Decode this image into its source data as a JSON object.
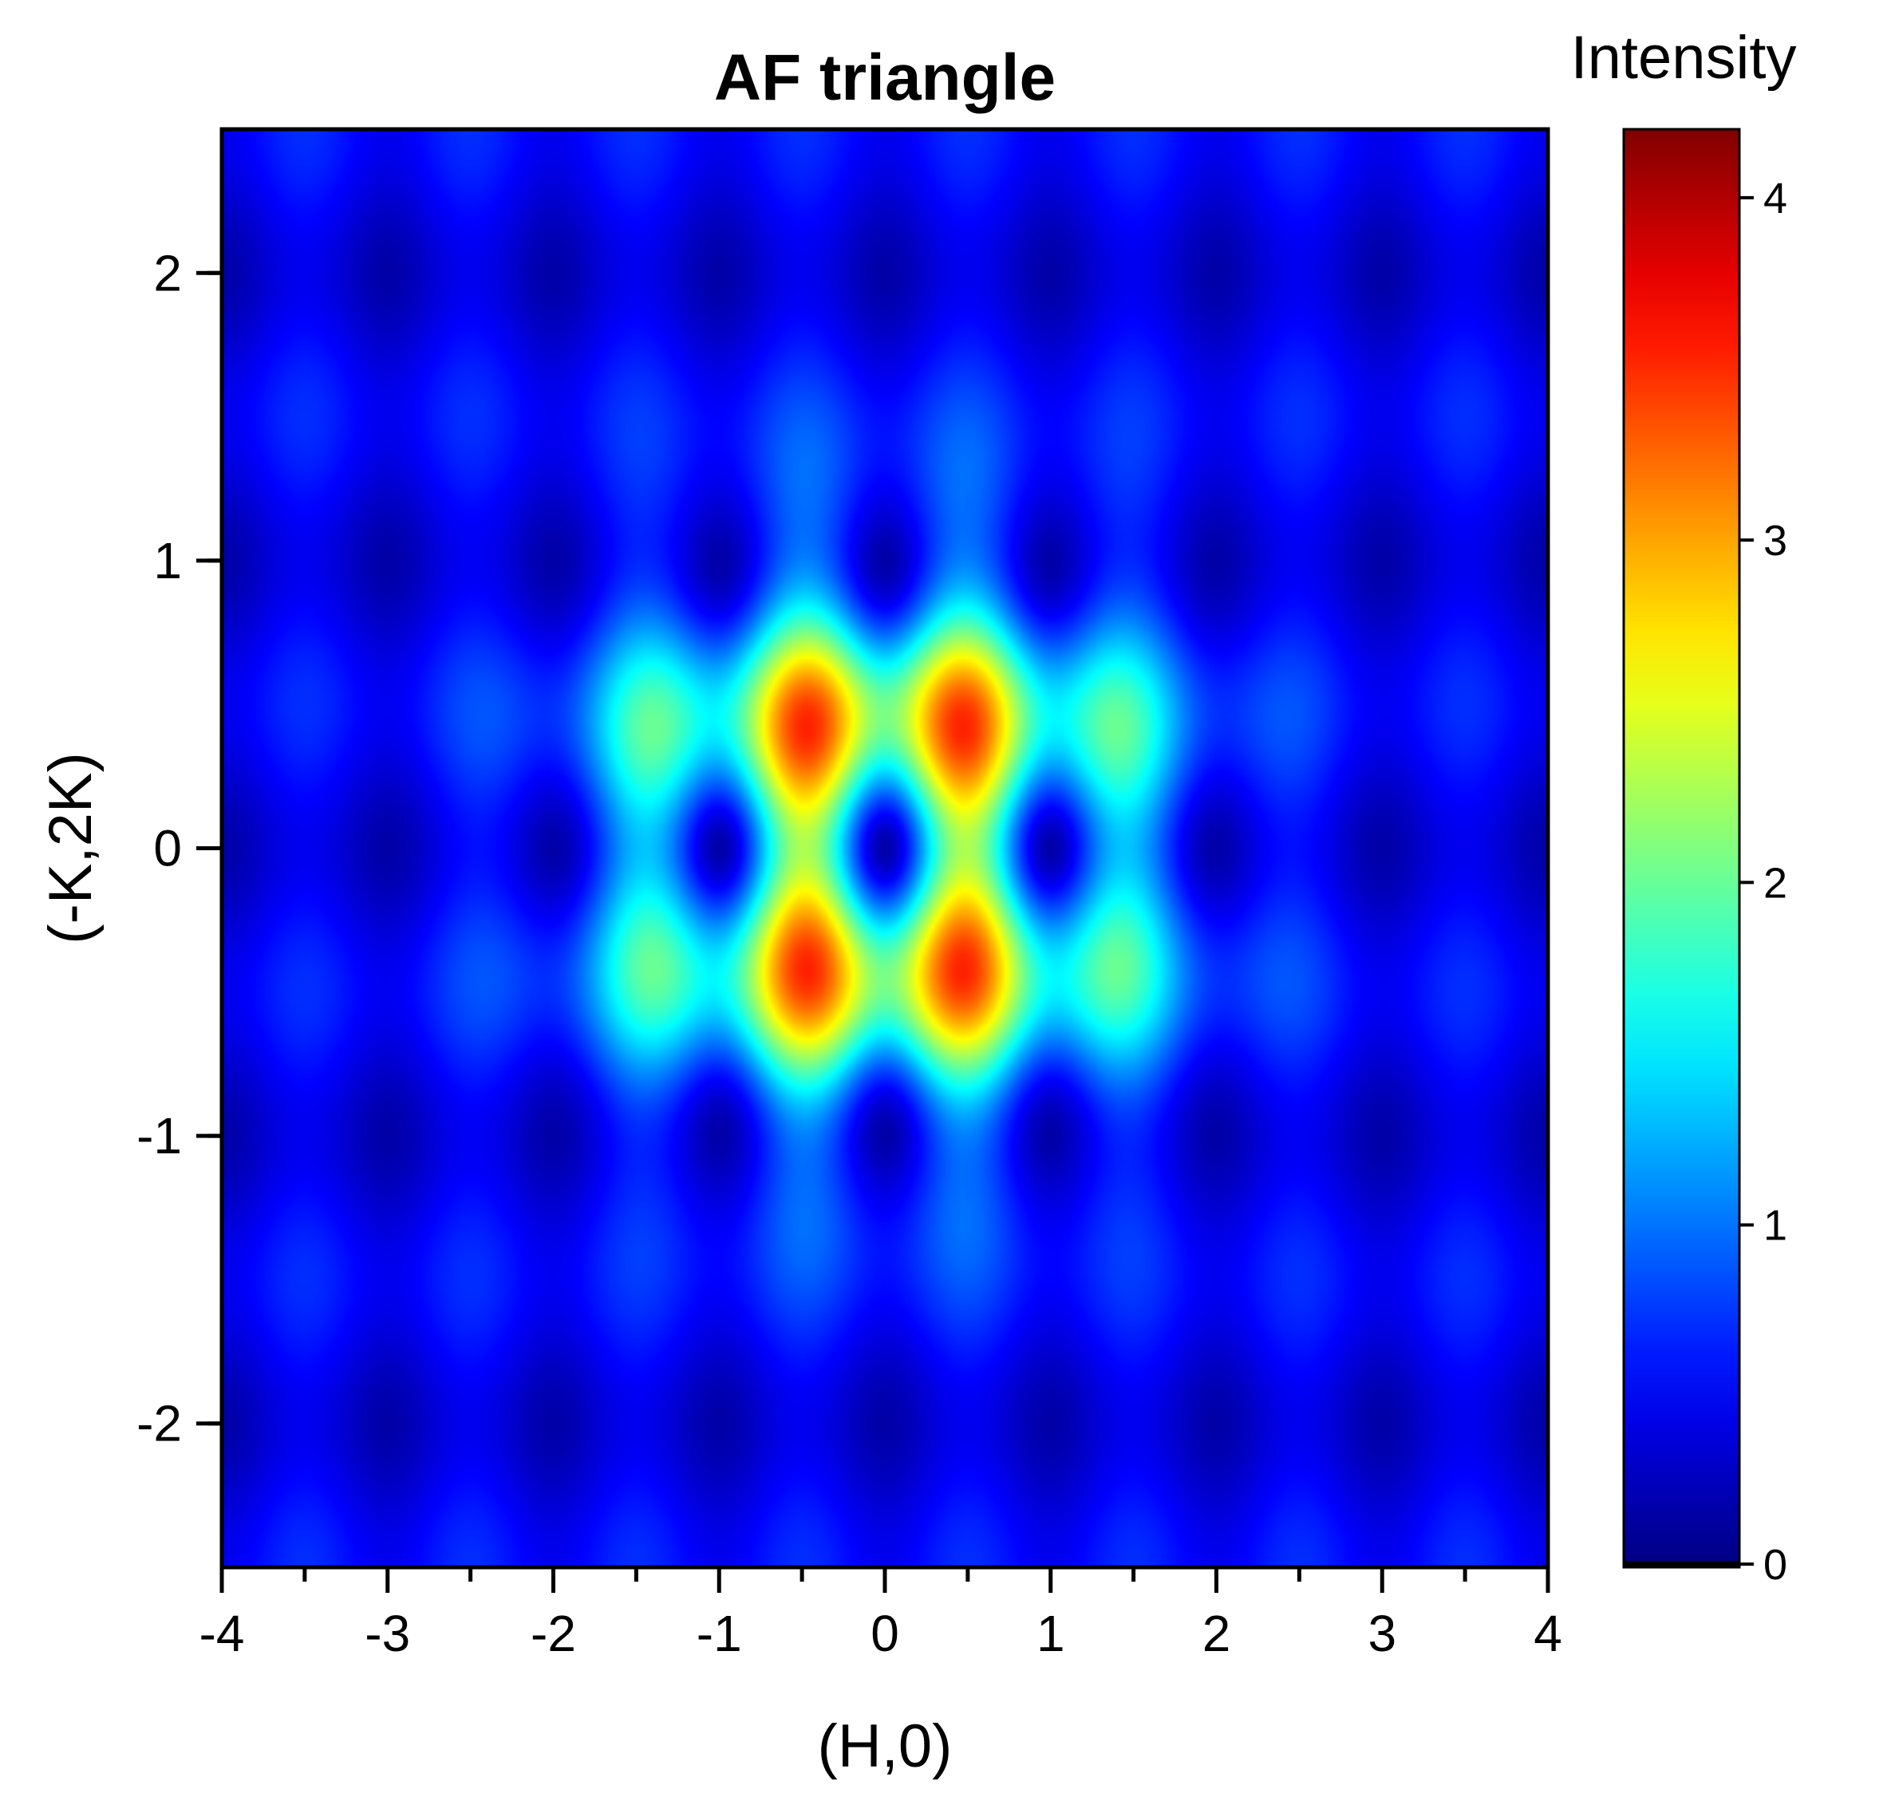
{
  "chart_data": {
    "type": "heatmap",
    "title": "AF triangle",
    "xlabel": "(H,0)",
    "ylabel": "(-K,2K)",
    "xlim": [
      -4,
      4
    ],
    "ylim": [
      -2.5,
      2.5
    ],
    "x_ticks": [
      -4,
      -3,
      -2,
      -1,
      0,
      1,
      2,
      3,
      4
    ],
    "x_tick_labels": [
      "-4",
      "-3",
      "-2",
      "-1",
      "0",
      "1",
      "2",
      "3",
      "4"
    ],
    "y_ticks": [
      -2,
      -1,
      0,
      1,
      2
    ],
    "y_tick_labels": [
      "-2",
      "-1",
      "0",
      "1",
      "2"
    ],
    "grid": false,
    "colorbar": {
      "title": "Intensity",
      "range": [
        0,
        4.2
      ],
      "ticks": [
        0,
        1,
        2,
        3,
        4
      ],
      "tick_labels": [
        "0",
        "1",
        "2",
        "3",
        "4"
      ],
      "colormap": "jet",
      "min_color": "#00007f",
      "max_color": "#7f0000"
    },
    "intensity_minima": [
      [
        0,
        0
      ],
      [
        2,
        0
      ],
      [
        -2,
        0
      ],
      [
        1,
        1
      ],
      [
        -1,
        1
      ],
      [
        1,
        -1
      ],
      [
        -1,
        -1
      ],
      [
        0,
        2
      ],
      [
        0,
        -2
      ],
      [
        2,
        2
      ],
      [
        -2,
        2
      ],
      [
        2,
        -2
      ],
      [
        -2,
        -2
      ],
      [
        3,
        1
      ],
      [
        -3,
        1
      ],
      [
        3,
        -1
      ],
      [
        -3,
        -1
      ],
      [
        4,
        0
      ],
      [
        -4,
        0
      ]
    ],
    "intensity_maxima_approx": [
      {
        "x": 0,
        "y": 0.6,
        "value": 4.0
      },
      {
        "x": 0,
        "y": -0.6,
        "value": 4.0
      },
      {
        "x": 0.9,
        "y": 0.3,
        "value": 4.0
      },
      {
        "x": -0.9,
        "y": 0.3,
        "value": 4.0
      },
      {
        "x": 0.9,
        "y": -0.3,
        "value": 4.0
      },
      {
        "x": -0.9,
        "y": -0.3,
        "value": 4.0
      }
    ]
  }
}
